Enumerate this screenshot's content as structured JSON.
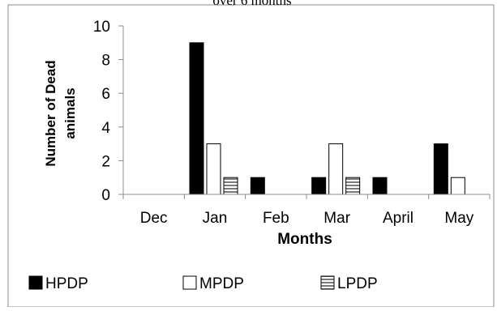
{
  "colors": {
    "HPDP": "#000000",
    "MPDP": "#ffffff",
    "LPDP": "#8a8a8a",
    "outline": "#000000",
    "axis": "#8c8c8c",
    "frame": "#8c8c8c",
    "text": "#000000"
  },
  "chart_data": {
    "type": "bar",
    "title": "over 6 months",
    "xlabel": "Months",
    "ylabel": "Number of Dead animals",
    "ylabel_lines": [
      "Number of Dead",
      "animals"
    ],
    "categories": [
      "Dec",
      "Jan",
      "Feb",
      "Mar",
      "April",
      "May"
    ],
    "ylim": [
      0,
      10
    ],
    "yticks": [
      0,
      2,
      4,
      6,
      8,
      10
    ],
    "grid": false,
    "legend_position": "bottom",
    "series": [
      {
        "name": "HPDP",
        "values": [
          0,
          9,
          1,
          1,
          1,
          3
        ],
        "fill": "solid-black"
      },
      {
        "name": "MPDP",
        "values": [
          0,
          3,
          0,
          3,
          0,
          1
        ],
        "fill": "white"
      },
      {
        "name": "LPDP",
        "values": [
          0,
          1,
          0,
          1,
          0,
          0
        ],
        "fill": "horizontal-stripes"
      }
    ]
  }
}
